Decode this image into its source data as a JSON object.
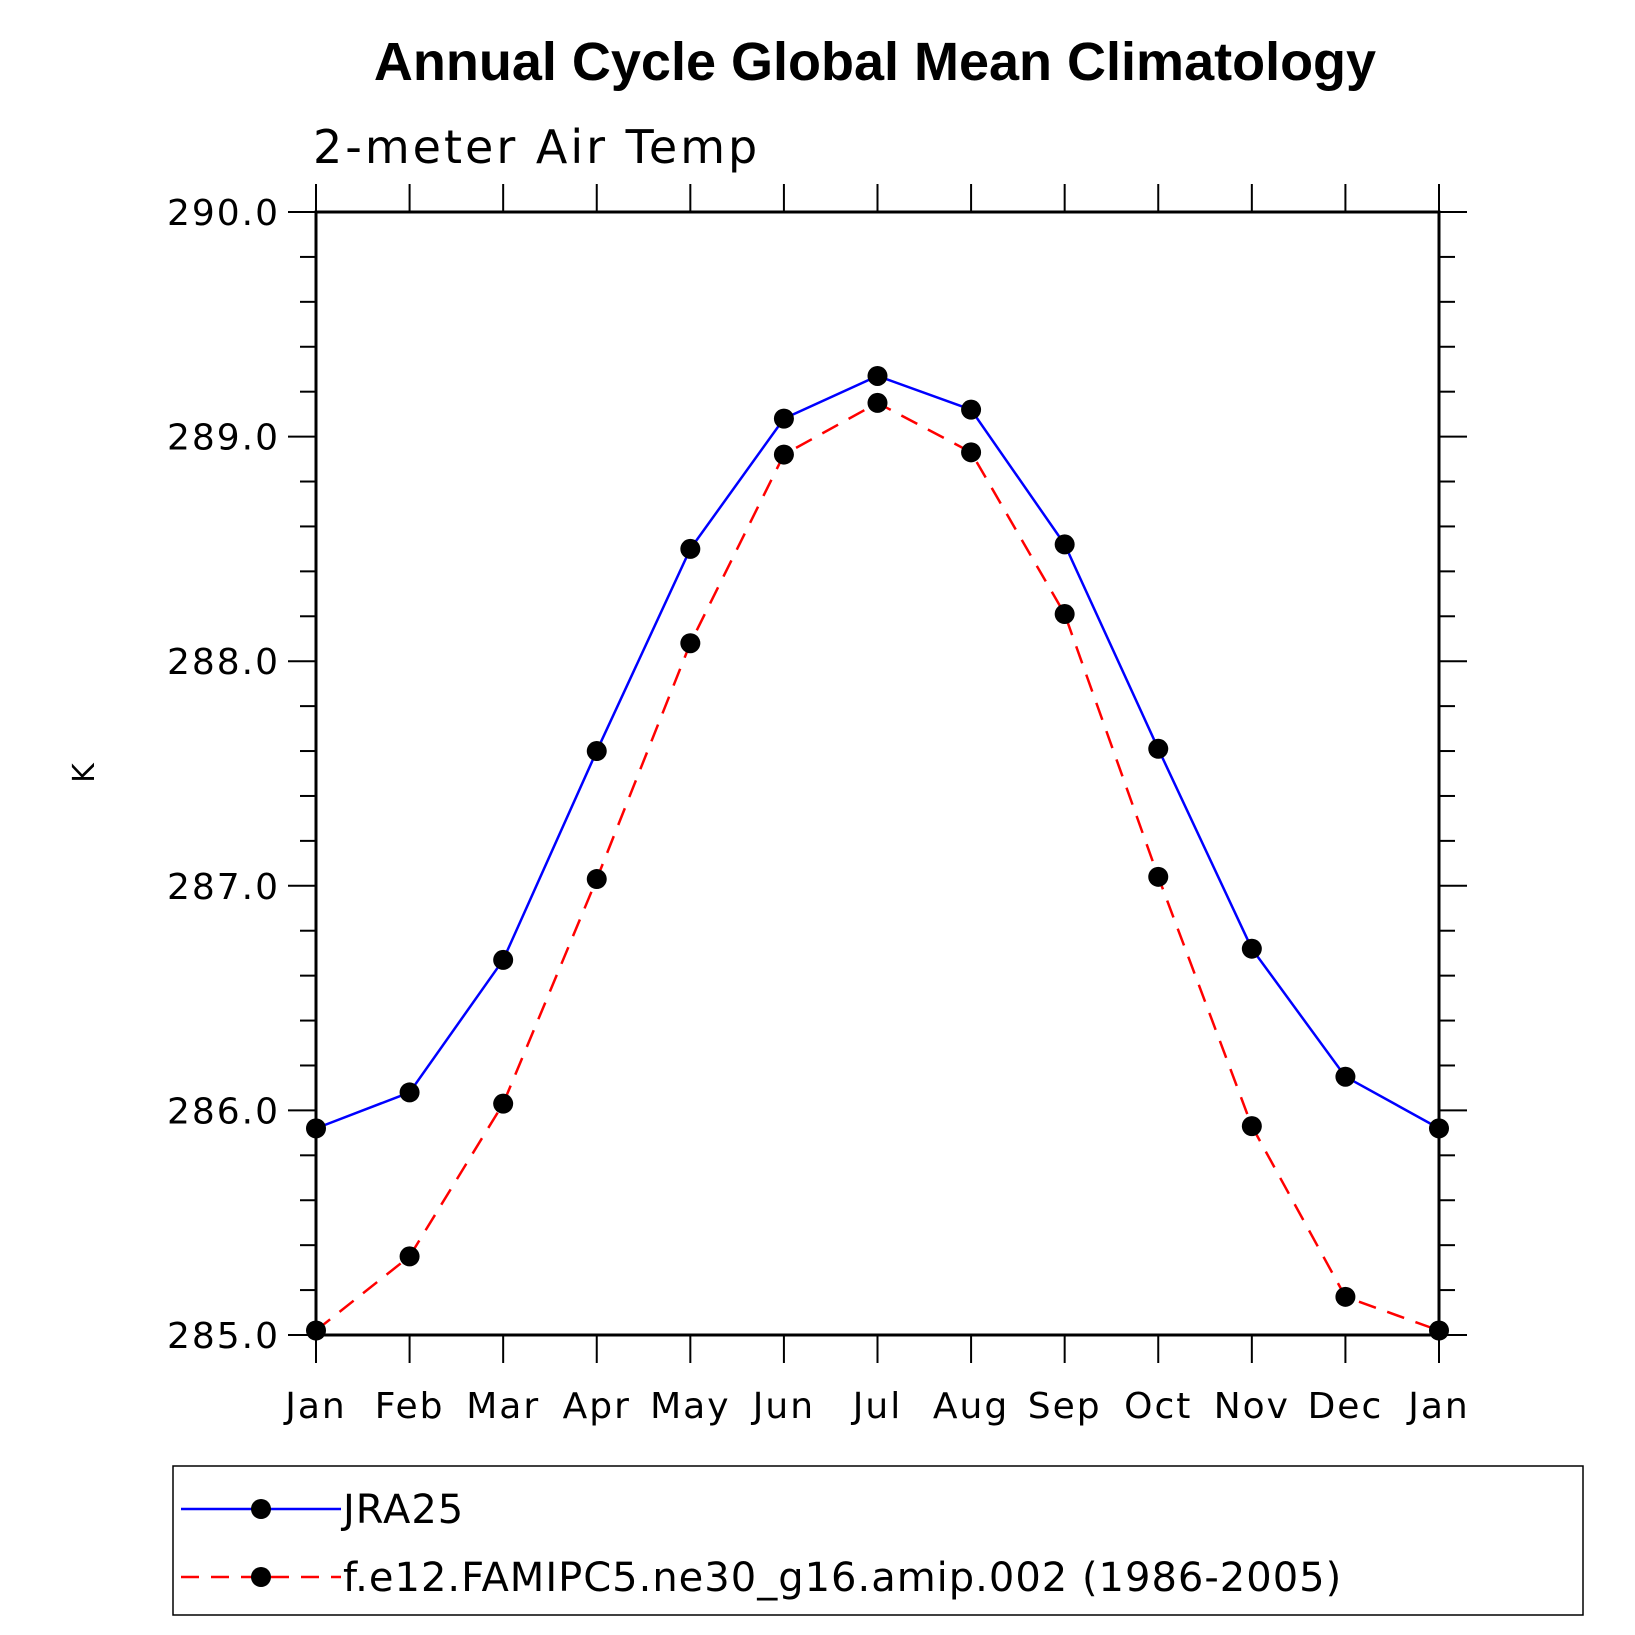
{
  "chart_data": {
    "type": "line",
    "title": "Annual Cycle Global Mean Climatology",
    "subtitle": "2-meter Air Temp",
    "ylabel": "K",
    "xlabel": "",
    "categories": [
      "Jan",
      "Feb",
      "Mar",
      "Apr",
      "May",
      "Jun",
      "Jul",
      "Aug",
      "Sep",
      "Oct",
      "Nov",
      "Dec",
      "Jan"
    ],
    "ylim": [
      285.0,
      290.0
    ],
    "y_ticks": [
      "285.0",
      "286.0",
      "287.0",
      "288.0",
      "289.0",
      "290.0"
    ],
    "y_minor_step": 0.2,
    "grid": false,
    "legend_position": "bottom",
    "series": [
      {
        "name": "JRA25",
        "color": "#0000ff",
        "line_style": "solid",
        "marker": "filled-circle",
        "values": [
          285.92,
          286.08,
          286.67,
          287.6,
          288.5,
          289.08,
          289.27,
          289.12,
          288.52,
          287.61,
          286.72,
          286.15,
          285.92
        ]
      },
      {
        "name": "f.e12.FAMIPC5.ne30_g16.amip.002 (1986-2005)",
        "color": "#ff0000",
        "line_style": "dashed",
        "marker": "filled-circle",
        "values": [
          285.02,
          285.35,
          286.03,
          287.03,
          288.08,
          288.92,
          289.15,
          288.93,
          288.21,
          287.04,
          285.93,
          285.17,
          285.02
        ]
      }
    ]
  }
}
